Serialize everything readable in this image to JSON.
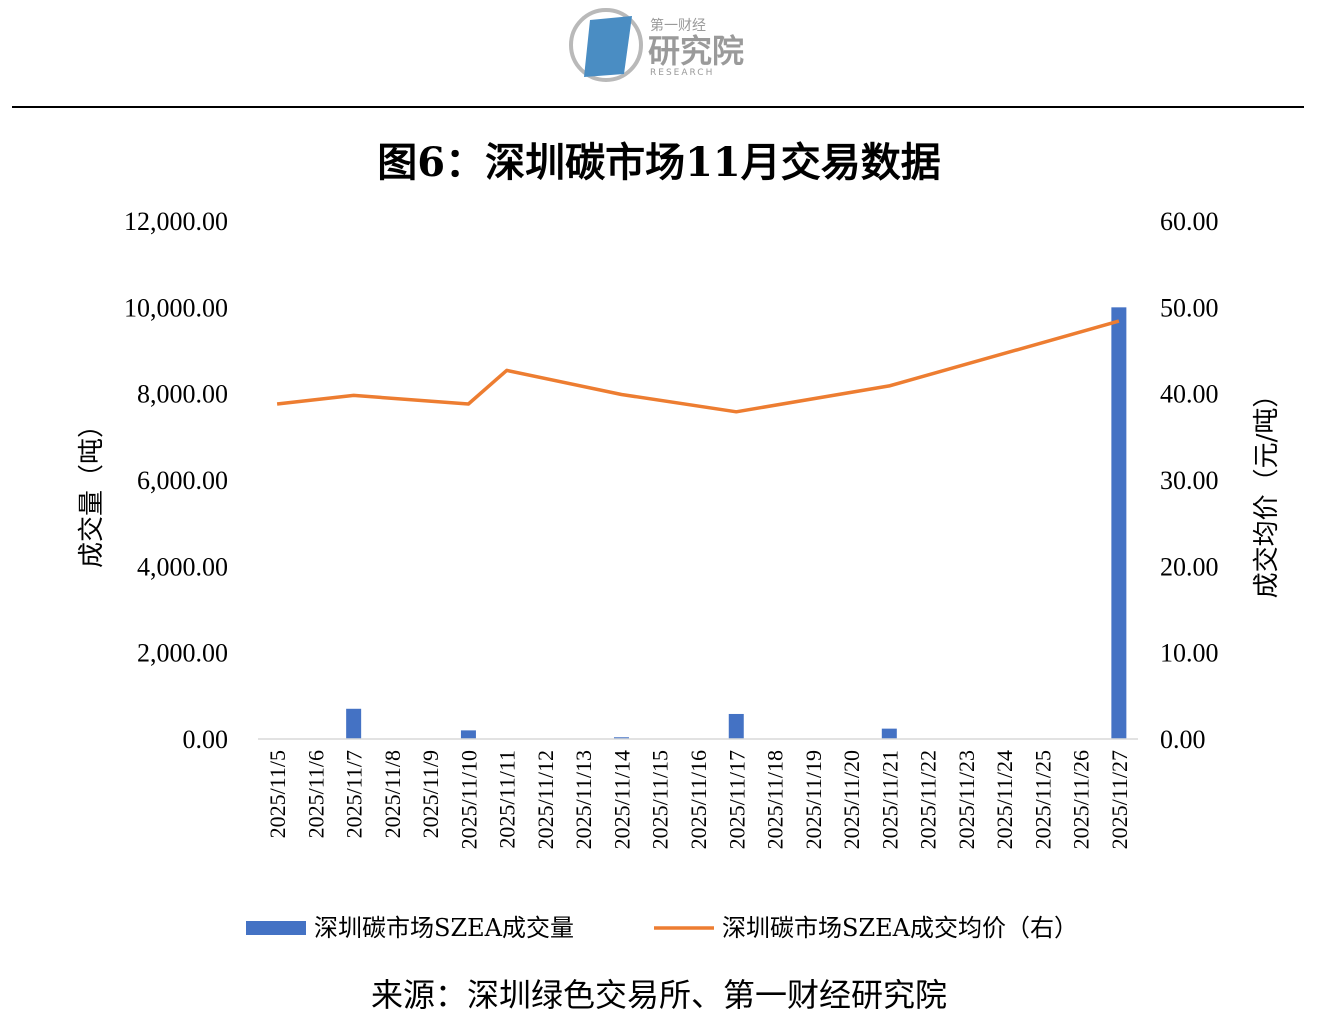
{
  "logo": {
    "line1": "第一财经",
    "line2": "研究院",
    "line3": "RESEARCH"
  },
  "colors": {
    "bar": "#4472C4",
    "line": "#ED7D31"
  },
  "chart_data": {
    "type": "bar",
    "title": "图6：深圳碳市场11月交易数据",
    "ylabel": "成交量（吨）",
    "y2label": "成交均价（元/吨）",
    "ylim": [
      0,
      12000
    ],
    "y2lim": [
      0,
      60
    ],
    "yticks": [
      "0.00",
      "2,000.00",
      "4,000.00",
      "6,000.00",
      "8,000.00",
      "10,000.00",
      "12,000.00"
    ],
    "y2ticks": [
      "0.00",
      "10.00",
      "20.00",
      "30.00",
      "40.00",
      "50.00",
      "60.00"
    ],
    "categories": [
      "2025/11/5",
      "2025/11/6",
      "2025/11/7",
      "2025/11/8",
      "2025/11/9",
      "2025/11/10",
      "2025/11/11",
      "2025/11/12",
      "2025/11/13",
      "2025/11/14",
      "2025/11/15",
      "2025/11/16",
      "2025/11/17",
      "2025/11/18",
      "2025/11/19",
      "2025/11/20",
      "2025/11/21",
      "2025/11/22",
      "2025/11/23",
      "2025/11/24",
      "2025/11/25",
      "2025/11/26",
      "2025/11/27"
    ],
    "series": [
      {
        "name": "深圳碳市场SZEA成交量",
        "type": "bar",
        "axis": "left",
        "values": [
          0,
          0,
          700,
          0,
          0,
          200,
          0,
          0,
          0,
          40,
          0,
          0,
          580,
          0,
          0,
          0,
          240,
          0,
          0,
          0,
          0,
          0,
          10000
        ]
      },
      {
        "name": "深圳碳市场SZEA成交均价（右）",
        "type": "line",
        "axis": "right",
        "values": [
          38.8,
          39.3,
          39.8,
          39.5,
          39.2,
          38.8,
          42.7,
          41.7,
          40.8,
          39.9,
          39.3,
          38.7,
          37.9,
          38.7,
          39.5,
          40.2,
          40.9,
          42.1,
          43.4,
          44.7,
          46.0,
          47.2,
          48.4
        ],
        "points": [
          0,
          2,
          5,
          6,
          9,
          12,
          16,
          22
        ]
      }
    ],
    "legend_position": "bottom",
    "grid": false,
    "source": "来源：深圳绿色交易所、第一财经研究院"
  }
}
